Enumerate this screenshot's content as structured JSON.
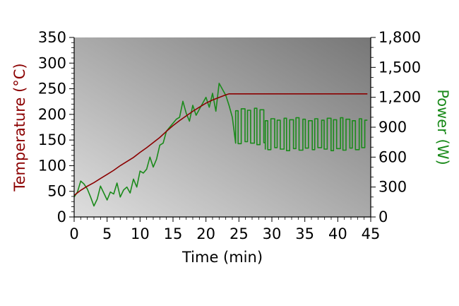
{
  "chart_data": {
    "type": "line",
    "xlabel": "Time (min)",
    "ylabel": "Temperature (°C)",
    "y2label": "Power (W)",
    "xlim": [
      0,
      45
    ],
    "ylim": [
      0,
      350
    ],
    "y2lim": [
      0,
      1800
    ],
    "x_ticks": [
      "0",
      "5",
      "10",
      "15",
      "20",
      "25",
      "30",
      "35",
      "40",
      "45"
    ],
    "y_ticks": [
      "0",
      "50",
      "100",
      "150",
      "200",
      "250",
      "300",
      "350"
    ],
    "y2_ticks": [
      "0",
      "300",
      "600",
      "900",
      "1,200",
      "1,500",
      "1,800"
    ],
    "colors": {
      "temperature": "#8b0000",
      "power": "#1a8a1a",
      "plot_bg_light": "#dedede",
      "plot_bg_dark": "#777777"
    },
    "series": [
      {
        "name": "Temperature (°C)",
        "axis": "left",
        "x": [
          0,
          1,
          2,
          3,
          4,
          5,
          6,
          7,
          8,
          9,
          10,
          11,
          12,
          13,
          14,
          15,
          16,
          17,
          18,
          19,
          20,
          21,
          22,
          23,
          23.5,
          24,
          26,
          28,
          30,
          32,
          34,
          36,
          38,
          40,
          42,
          44,
          44.5
        ],
        "y": [
          42,
          52,
          60,
          67,
          75,
          83,
          91,
          100,
          108,
          116,
          126,
          135,
          145,
          155,
          167,
          178,
          188,
          197,
          206,
          214,
          222,
          228,
          233,
          238,
          240,
          240,
          240,
          240,
          240,
          240,
          240,
          240,
          240,
          240,
          240,
          240,
          240
        ]
      },
      {
        "name": "Power (W)",
        "axis": "right",
        "x": [
          0,
          0.5,
          1,
          1.5,
          2,
          2.5,
          3,
          3.5,
          4,
          4.5,
          5,
          5.5,
          6,
          6.5,
          7,
          7.5,
          8,
          8.5,
          9,
          9.5,
          10,
          10.5,
          11,
          11.5,
          12,
          12.5,
          13,
          13.5,
          14,
          14.5,
          15,
          15.5,
          16,
          16.5,
          17,
          17.5,
          18,
          18.5,
          19,
          19.5,
          20,
          20.5,
          21,
          21.5,
          22,
          22.5,
          23,
          23.5,
          24
        ],
        "y": [
          200,
          250,
          360,
          330,
          280,
          200,
          110,
          180,
          310,
          240,
          170,
          250,
          230,
          340,
          200,
          270,
          300,
          240,
          380,
          300,
          460,
          440,
          480,
          600,
          500,
          580,
          720,
          740,
          860,
          900,
          940,
          980,
          1000,
          1160,
          1040,
          960,
          1120,
          1020,
          1080,
          1140,
          1200,
          1100,
          1240,
          1060,
          1340,
          1280,
          1220,
          1120,
          1000
        ]
      }
    ],
    "power_switching": [
      {
        "from": 24.5,
        "to": 29,
        "high": 1080,
        "low": 740
      },
      {
        "from": 29,
        "to": 44.5,
        "high": 980,
        "low": 680
      }
    ]
  }
}
